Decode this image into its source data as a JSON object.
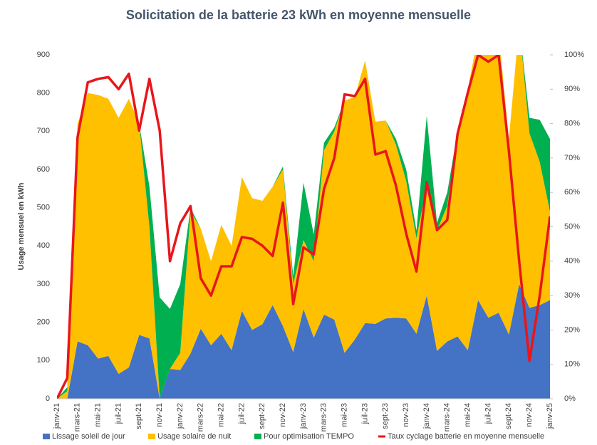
{
  "chart_data": {
    "type": "stacked_area_line",
    "title": "Solicitation de la batterie 23 kWh en moyenne mensuelle",
    "y_label": "Usage mensuel en kWh",
    "categories": [
      "janv-21",
      null,
      "mars-21",
      null,
      "mai-21",
      null,
      "juil-21",
      null,
      "sept-21",
      null,
      "nov-21",
      null,
      "janv-22",
      null,
      "mars-22",
      null,
      "mai-22",
      null,
      "juil-22",
      null,
      "sept-22",
      null,
      "nov-22",
      null,
      "janv-23",
      null,
      "mars-23",
      null,
      "mai-23",
      null,
      "juil-23",
      null,
      "sept-23",
      null,
      "nov-23",
      null,
      "janv-24",
      null,
      "mars-24",
      null,
      "mai-24",
      null,
      "juil-24",
      null,
      "sept-24",
      null,
      "nov-24",
      null,
      "janv-25"
    ],
    "series": [
      {
        "name": "Lissage soleil de jour",
        "color": "#4472c4",
        "values": [
          0,
          0,
          150,
          140,
          105,
          112,
          65,
          82,
          167,
          158,
          0,
          78,
          75,
          118,
          183,
          140,
          170,
          127,
          230,
          180,
          195,
          245,
          190,
          122,
          235,
          160,
          220,
          207,
          120,
          155,
          198,
          196,
          210,
          212,
          210,
          170,
          270,
          125,
          150,
          163,
          127,
          258,
          212,
          225,
          168,
          300,
          238,
          245,
          258
        ]
      },
      {
        "name": "Usage solaire de nuit",
        "color": "#ffc000",
        "values": [
          0,
          20,
          570,
          660,
          690,
          673,
          670,
          703,
          553,
          292,
          0,
          0,
          45,
          372,
          262,
          220,
          285,
          273,
          350,
          345,
          323,
          310,
          410,
          178,
          180,
          200,
          430,
          493,
          660,
          635,
          687,
          529,
          518,
          453,
          360,
          250,
          290,
          315,
          355,
          537,
          683,
          692,
          748,
          735,
          512,
          680,
          457,
          375,
          232
        ]
      },
      {
        "name": "Pour optimisation TEMPO",
        "color": "#00b050",
        "values": [
          0,
          10,
          0,
          0,
          0,
          0,
          0,
          0,
          0,
          105,
          265,
          157,
          180,
          10,
          0,
          0,
          0,
          0,
          0,
          0,
          0,
          0,
          8,
          20,
          150,
          70,
          20,
          10,
          0,
          0,
          0,
          0,
          0,
          15,
          30,
          20,
          180,
          20,
          35,
          0,
          0,
          0,
          0,
          0,
          0,
          0,
          40,
          110,
          190
        ]
      },
      {
        "name": "Taux cyclage batterie en moyenne mensuelle",
        "color": "#e8161b",
        "axis": "y2",
        "values": [
          0,
          6,
          76,
          92,
          93,
          93.5,
          90,
          94.5,
          78,
          93,
          78,
          40,
          51,
          56,
          35,
          30,
          38.5,
          38.5,
          47,
          46.5,
          44.5,
          41.5,
          57,
          27.5,
          44,
          42,
          61,
          70,
          88.5,
          88,
          93,
          71,
          72,
          62,
          48,
          37,
          63,
          49,
          52,
          77,
          89,
          100,
          98,
          100,
          72,
          40,
          11,
          30,
          53
        ]
      }
    ],
    "ylim": [
      0,
      900
    ],
    "yticks": [
      0,
      100,
      200,
      300,
      400,
      500,
      600,
      700,
      800,
      900
    ],
    "y2lim": [
      0,
      100
    ],
    "y2ticks": [
      {
        "value": 0,
        "label": "0%"
      },
      {
        "value": 10,
        "label": "10%"
      },
      {
        "value": 20,
        "label": "20%"
      },
      {
        "value": 30,
        "label": "30%"
      },
      {
        "value": 40,
        "label": "40%"
      },
      {
        "value": 50,
        "label": "50%"
      },
      {
        "value": 60,
        "label": "60%"
      },
      {
        "value": 70,
        "label": "70%"
      },
      {
        "value": 80,
        "label": "80%"
      },
      {
        "value": 90,
        "label": "90%"
      },
      {
        "value": 100,
        "label": "100%"
      }
    ],
    "grid": false,
    "legend": "bottom"
  }
}
